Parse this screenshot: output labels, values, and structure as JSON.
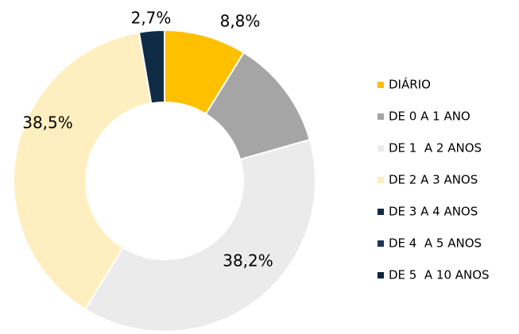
{
  "chart_data": {
    "type": "donut",
    "categories": [
      "DIÁRIO",
      "DE 0 A 1 ANO",
      "DE 1  A 2 ANOS",
      "DE 2 A 3 ANOS",
      "DE 3 A 4 ANOS",
      "DE 4  A 5 ANOS",
      "DE 5  A 10 ANOS"
    ],
    "values": [
      8.8,
      11.8,
      38.2,
      38.5,
      2.7,
      0,
      0
    ],
    "value_labels": [
      "8,8%",
      null,
      "38,2%",
      "38,5%",
      "2,7%",
      null,
      null
    ],
    "colors": [
      "#ffc000",
      "#a5a5a5",
      "#ebebeb",
      "#ffeebf",
      "#0f2b46",
      "#1b3656",
      "#0c2540"
    ],
    "legend": "right"
  }
}
